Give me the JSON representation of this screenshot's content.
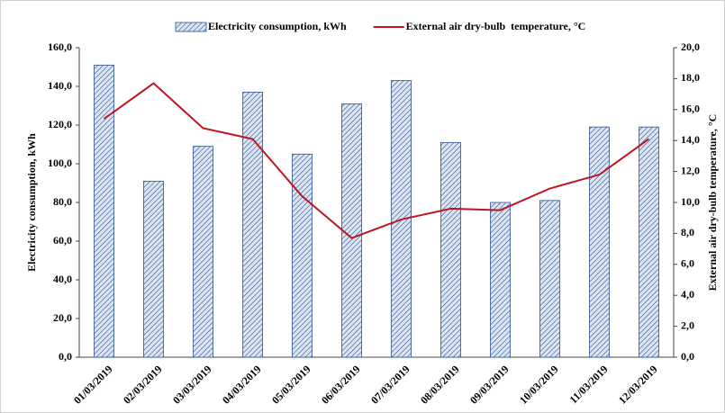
{
  "chart_data": {
    "type": "bar",
    "ylabel": "Electricity consumption, kWh",
    "y2label": "External air dry-bulb temperature, °C",
    "categories": [
      "01/03/2019",
      "02/03/2019",
      "03/03/2019",
      "04/03/2019",
      "05/03/2019",
      "06/03/2019",
      "07/03/2019",
      "08/03/2019",
      "09/03/2019",
      "10/03/2019",
      "11/03/2019",
      "12/03/2019"
    ],
    "series": [
      {
        "name": "Electricity consumption, kWh",
        "type": "bar",
        "color": "#2f4f8f",
        "values": [
          151,
          91,
          109,
          137,
          105,
          131,
          143,
          111,
          80,
          81,
          119,
          119
        ]
      },
      {
        "name": "External air dry-bulb  temperature, °C",
        "type": "line",
        "axis": "y2",
        "color": "#c0141e",
        "values": [
          15.4,
          17.7,
          14.8,
          14.1,
          10.4,
          7.7,
          8.9,
          9.6,
          9.5,
          10.9,
          11.8,
          14.1
        ]
      }
    ],
    "ylim": [
      0,
      160
    ],
    "yticks": [
      {
        "value": 0,
        "label": "0,0"
      },
      {
        "value": 20,
        "label": "20,0"
      },
      {
        "value": 40,
        "label": "40,0"
      },
      {
        "value": 60,
        "label": "60,0"
      },
      {
        "value": 80,
        "label": "80,0"
      },
      {
        "value": 100,
        "label": "100,0"
      },
      {
        "value": 120,
        "label": "120,0"
      },
      {
        "value": 140,
        "label": "140,0"
      },
      {
        "value": 160,
        "label": "160,0"
      }
    ],
    "y2lim": [
      0,
      20
    ],
    "y2ticks": [
      {
        "value": 0,
        "label": "0,0"
      },
      {
        "value": 2,
        "label": "2,0"
      },
      {
        "value": 4,
        "label": "4,0"
      },
      {
        "value": 6,
        "label": "6,0"
      },
      {
        "value": 8,
        "label": "8,0"
      },
      {
        "value": 10,
        "label": "10,0"
      },
      {
        "value": 12,
        "label": "12,0"
      },
      {
        "value": 14,
        "label": "14,0"
      },
      {
        "value": 16,
        "label": "16,0"
      },
      {
        "value": 18,
        "label": "18,0"
      },
      {
        "value": 20,
        "label": "20,0"
      }
    ],
    "grid": false
  }
}
